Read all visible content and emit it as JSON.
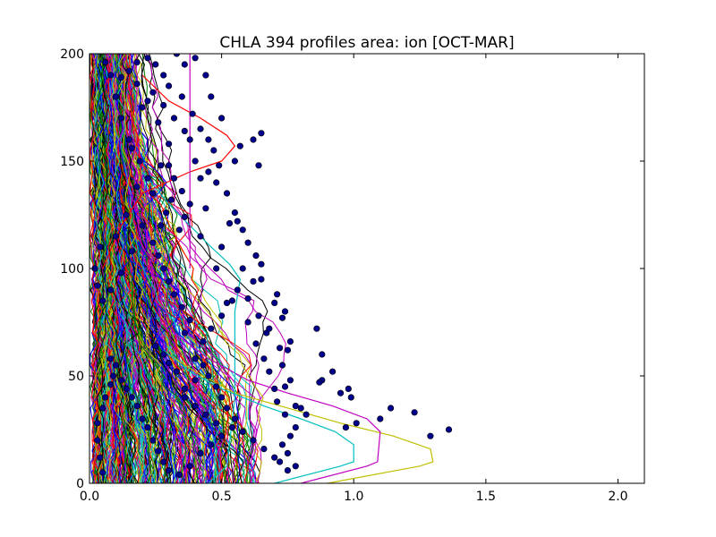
{
  "chart_data": {
    "type": "line",
    "title": "CHLA 394 profiles area: ion [OCT-MAR]",
    "xlabel": "",
    "ylabel": "",
    "xlim": [
      0,
      2.1
    ],
    "ylim": [
      0,
      200
    ],
    "x_ticks": [
      "0.0",
      "0.5",
      "1.0",
      "1.5",
      "2.0"
    ],
    "y_ticks": [
      "0",
      "50",
      "100",
      "150",
      "200"
    ],
    "grid": false,
    "legend": "none",
    "series_count": 394,
    "marker_color": "#00008b",
    "line_colors": [
      "#0000ff",
      "#008000",
      "#ff0000",
      "#00bfbf",
      "#bf00bf",
      "#bfbf00",
      "#000000"
    ],
    "highlighted_profiles": [
      {
        "color": "#bfbf00",
        "points": [
          [
            0.9,
            0
          ],
          [
            1.25,
            8
          ],
          [
            1.3,
            10
          ],
          [
            1.29,
            16
          ],
          [
            1.15,
            22
          ],
          [
            0.95,
            28
          ],
          [
            0.78,
            34
          ],
          [
            0.55,
            42
          ],
          [
            0.4,
            52
          ],
          [
            0.3,
            60
          ]
        ]
      },
      {
        "color": "#bf00bf",
        "points": [
          [
            0.8,
            0
          ],
          [
            1.05,
            8
          ],
          [
            1.09,
            10
          ],
          [
            1.1,
            24
          ],
          [
            1.05,
            30
          ],
          [
            0.92,
            36
          ],
          [
            0.75,
            42
          ],
          [
            0.6,
            48
          ],
          [
            0.45,
            58
          ],
          [
            0.32,
            70
          ]
        ]
      },
      {
        "color": "#00bfbf",
        "points": [
          [
            0.7,
            0
          ],
          [
            0.95,
            8
          ],
          [
            1.0,
            10
          ],
          [
            1.0,
            18
          ],
          [
            0.93,
            24
          ],
          [
            0.8,
            30
          ],
          [
            0.66,
            36
          ],
          [
            0.5,
            44
          ],
          [
            0.38,
            52
          ],
          [
            0.28,
            62
          ]
        ]
      },
      {
        "color": "#00bfbf",
        "points": [
          [
            0.45,
            0
          ],
          [
            0.52,
            8
          ],
          [
            0.55,
            40
          ],
          [
            0.55,
            80
          ],
          [
            0.57,
            95
          ],
          [
            0.53,
            102
          ],
          [
            0.46,
            110
          ],
          [
            0.38,
            120
          ],
          [
            0.3,
            130
          ],
          [
            0.2,
            145
          ]
        ]
      },
      {
        "color": "#ff0000",
        "points": [
          [
            0.05,
            100
          ],
          [
            0.12,
            120
          ],
          [
            0.2,
            135
          ],
          [
            0.38,
            145
          ],
          [
            0.5,
            150
          ],
          [
            0.55,
            157
          ],
          [
            0.52,
            162
          ],
          [
            0.42,
            170
          ],
          [
            0.3,
            178
          ],
          [
            0.2,
            190
          ]
        ]
      },
      {
        "color": "#bf00bf",
        "points": [
          [
            0.38,
            100
          ],
          [
            0.38,
            175
          ],
          [
            0.38,
            185
          ],
          [
            0.38,
            190
          ],
          [
            0.38,
            200
          ]
        ]
      }
    ],
    "scatter_points": [
      [
        1.36,
        25
      ],
      [
        1.29,
        22
      ],
      [
        1.23,
        33
      ],
      [
        1.14,
        35
      ],
      [
        1.1,
        30
      ],
      [
        1.01,
        28
      ],
      [
        0.99,
        40
      ],
      [
        0.98,
        44
      ],
      [
        0.95,
        42
      ],
      [
        0.97,
        26
      ],
      [
        0.92,
        52
      ],
      [
        0.88,
        48
      ],
      [
        0.88,
        60
      ],
      [
        0.87,
        47
      ],
      [
        0.86,
        72
      ],
      [
        0.82,
        32
      ],
      [
        0.8,
        35
      ],
      [
        0.78,
        36
      ],
      [
        0.76,
        48
      ],
      [
        0.74,
        45
      ],
      [
        0.73,
        55
      ],
      [
        0.72,
        63
      ],
      [
        0.75,
        62
      ],
      [
        0.76,
        66
      ],
      [
        0.74,
        80
      ],
      [
        0.73,
        77
      ],
      [
        0.71,
        88
      ],
      [
        0.7,
        84
      ],
      [
        0.67,
        70
      ],
      [
        0.65,
        95
      ],
      [
        0.65,
        102
      ],
      [
        0.63,
        106
      ],
      [
        0.62,
        94
      ],
      [
        0.6,
        112
      ],
      [
        0.58,
        118
      ],
      [
        0.56,
        122
      ],
      [
        0.55,
        126
      ],
      [
        0.53,
        121
      ],
      [
        0.62,
        160
      ],
      [
        0.65,
        163
      ],
      [
        0.57,
        157
      ],
      [
        0.64,
        148
      ],
      [
        0.55,
        150
      ],
      [
        0.52,
        135
      ],
      [
        0.48,
        140
      ],
      [
        0.45,
        145
      ],
      [
        0.44,
        128
      ],
      [
        0.42,
        115
      ],
      [
        0.5,
        110
      ],
      [
        0.48,
        100
      ],
      [
        0.4,
        150
      ],
      [
        0.38,
        160
      ],
      [
        0.42,
        165
      ],
      [
        0.39,
        172
      ],
      [
        0.35,
        180
      ],
      [
        0.3,
        185
      ],
      [
        0.28,
        190
      ],
      [
        0.25,
        195
      ],
      [
        0.33,
        200
      ],
      [
        0.22,
        198
      ],
      [
        0.18,
        196
      ],
      [
        0.15,
        192
      ],
      [
        0.12,
        189
      ],
      [
        0.18,
        186
      ],
      [
        0.22,
        178
      ],
      [
        0.26,
        168
      ],
      [
        0.3,
        158
      ],
      [
        0.27,
        148
      ],
      [
        0.24,
        135
      ],
      [
        0.2,
        120
      ],
      [
        0.16,
        108
      ],
      [
        0.12,
        98
      ],
      [
        0.08,
        90
      ],
      [
        0.05,
        85
      ],
      [
        0.03,
        92
      ],
      [
        0.02,
        100
      ],
      [
        0.04,
        110
      ],
      [
        0.1,
        115
      ],
      [
        0.14,
        125
      ],
      [
        0.18,
        138
      ],
      [
        0.5,
        170
      ],
      [
        0.46,
        180
      ],
      [
        0.44,
        190
      ],
      [
        0.4,
        198
      ],
      [
        0.36,
        195
      ],
      [
        0.54,
        85
      ],
      [
        0.5,
        78
      ],
      [
        0.46,
        72
      ],
      [
        0.43,
        66
      ],
      [
        0.4,
        58
      ],
      [
        0.6,
        75
      ],
      [
        0.63,
        65
      ],
      [
        0.66,
        58
      ],
      [
        0.68,
        52
      ],
      [
        0.7,
        44
      ],
      [
        0.71,
        38
      ],
      [
        0.74,
        32
      ],
      [
        0.78,
        26
      ],
      [
        0.76,
        22
      ],
      [
        0.73,
        18
      ],
      [
        0.75,
        14
      ],
      [
        0.72,
        10
      ],
      [
        0.78,
        8
      ],
      [
        0.75,
        6
      ],
      [
        0.7,
        12
      ],
      [
        0.66,
        16
      ],
      [
        0.62,
        20
      ],
      [
        0.58,
        24
      ],
      [
        0.55,
        30
      ],
      [
        0.52,
        35
      ],
      [
        0.5,
        40
      ],
      [
        0.48,
        45
      ],
      [
        0.45,
        50
      ],
      [
        0.43,
        55
      ],
      [
        0.4,
        48
      ],
      [
        0.36,
        44
      ],
      [
        0.33,
        52
      ],
      [
        0.3,
        56
      ],
      [
        0.28,
        60
      ],
      [
        0.25,
        64
      ],
      [
        0.36,
        70
      ],
      [
        0.38,
        76
      ],
      [
        0.35,
        82
      ],
      [
        0.32,
        88
      ],
      [
        0.3,
        94
      ],
      [
        0.28,
        100
      ],
      [
        0.26,
        106
      ],
      [
        0.24,
        112
      ],
      [
        0.34,
        118
      ],
      [
        0.36,
        124
      ],
      [
        0.38,
        130
      ],
      [
        0.35,
        136
      ],
      [
        0.32,
        142
      ],
      [
        0.3,
        148
      ],
      [
        0.58,
        100
      ],
      [
        0.56,
        90
      ],
      [
        0.52,
        84
      ],
      [
        0.6,
        86
      ],
      [
        0.64,
        78
      ],
      [
        0.68,
        72
      ],
      [
        0.05,
        5
      ],
      [
        0.04,
        12
      ],
      [
        0.03,
        20
      ],
      [
        0.03,
        28
      ],
      [
        0.05,
        35
      ],
      [
        0.06,
        40
      ],
      [
        0.08,
        46
      ],
      [
        0.09,
        50
      ],
      [
        0.1,
        55
      ],
      [
        0.08,
        58
      ],
      [
        0.12,
        48
      ],
      [
        0.14,
        44
      ],
      [
        0.16,
        40
      ],
      [
        0.18,
        36
      ],
      [
        0.2,
        30
      ],
      [
        0.22,
        26
      ],
      [
        0.24,
        20
      ],
      [
        0.26,
        15
      ],
      [
        0.28,
        10
      ],
      [
        0.3,
        6
      ],
      [
        0.34,
        4
      ],
      [
        0.38,
        8
      ],
      [
        0.42,
        14
      ],
      [
        0.46,
        18
      ],
      [
        0.5,
        22
      ],
      [
        0.54,
        26
      ],
      [
        0.48,
        28
      ],
      [
        0.44,
        32
      ],
      [
        0.4,
        36
      ],
      [
        0.36,
        40
      ],
      [
        0.15,
        160
      ],
      [
        0.12,
        170
      ],
      [
        0.1,
        180
      ],
      [
        0.08,
        190
      ],
      [
        0.06,
        196
      ],
      [
        0.2,
        175
      ],
      [
        0.24,
        182
      ],
      [
        0.28,
        176
      ],
      [
        0.32,
        170
      ],
      [
        0.36,
        164
      ],
      [
        0.27,
        120
      ],
      [
        0.29,
        126
      ],
      [
        0.31,
        132
      ],
      [
        0.22,
        142
      ],
      [
        0.19,
        150
      ],
      [
        0.16,
        156
      ],
      [
        0.45,
        160
      ],
      [
        0.47,
        155
      ],
      [
        0.49,
        148
      ],
      [
        0.42,
        142
      ]
    ]
  }
}
